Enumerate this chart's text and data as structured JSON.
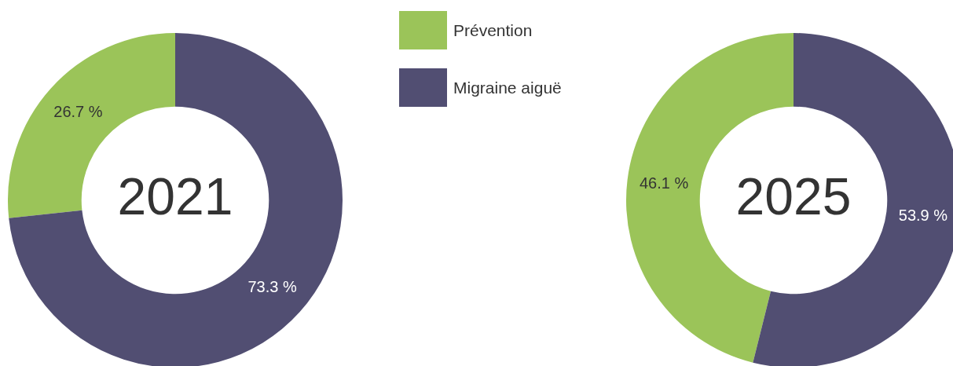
{
  "chart_data": {
    "type": "donut",
    "categories": [
      "Prévention",
      "Migraine aiguë"
    ],
    "colors": [
      "#9bc459",
      "#514e72"
    ],
    "legend": "top",
    "series": [
      {
        "name": "2021",
        "values": [
          26.7,
          73.3
        ],
        "value_labels": [
          "26.7 %",
          "73.3 %"
        ]
      },
      {
        "name": "2025",
        "values": [
          46.1,
          53.9
        ],
        "value_labels": [
          "46.1 %",
          "53.9 %"
        ]
      }
    ]
  }
}
